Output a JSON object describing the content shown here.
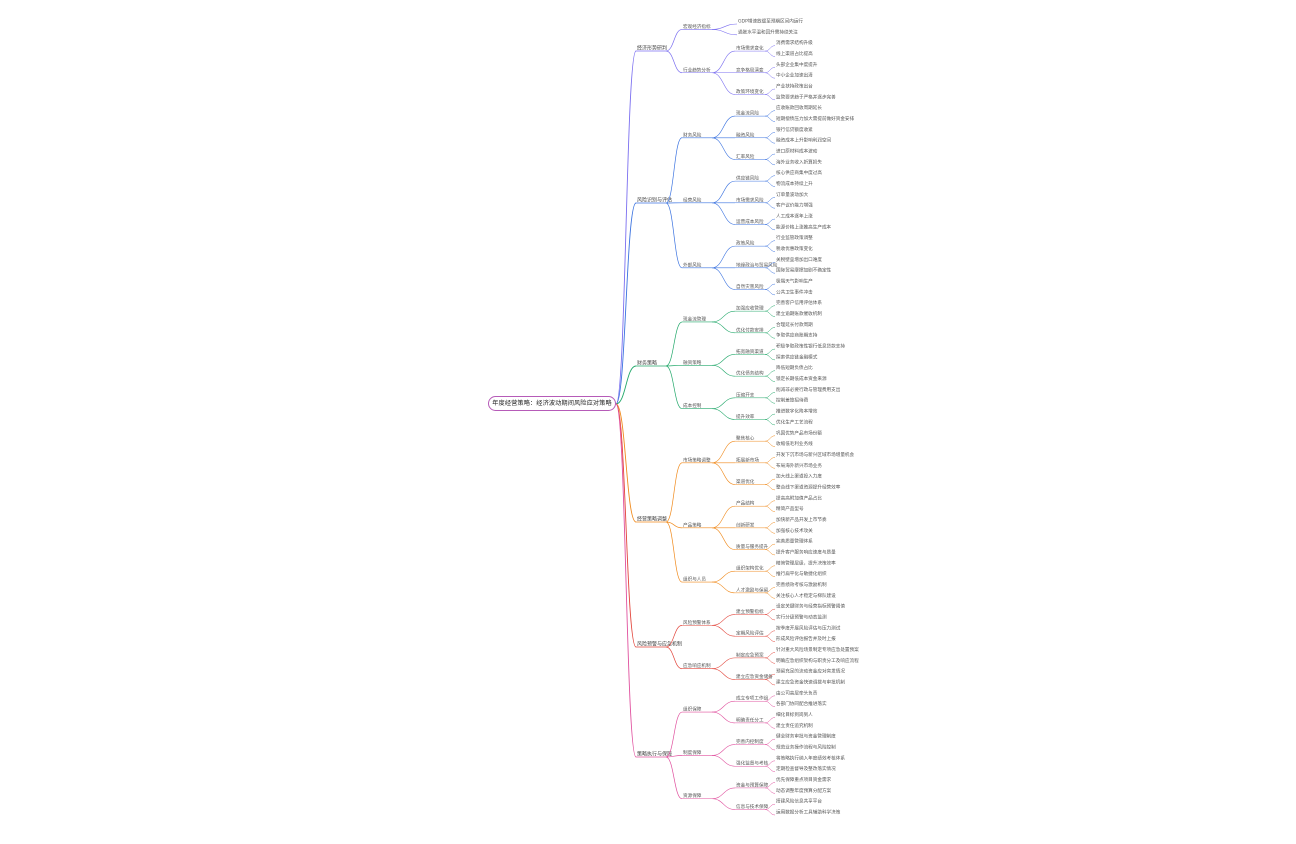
{
  "root": {
    "label": "年度经营策略：经济波动期间风险应对策略"
  },
  "branches": [
    {
      "label": "经济形势研判",
      "color": "#7b6ff0",
      "children": [
        {
          "label": "宏观经济指标",
          "children": [
            {
              "label": "GDP增速放缓至预期区间内运行"
            },
            {
              "label": "通胀水平温和回升需持续关注"
            }
          ]
        },
        {
          "label": "行业趋势分析",
          "children": [
            {
              "label": "市场需求变化",
              "children": [
                {
                  "label": "消费需求结构升级"
                },
                {
                  "label": "线上渠道占比提高"
                }
              ]
            },
            {
              "label": "竞争格局演变",
              "children": [
                {
                  "label": "头部企业集中度提升"
                },
                {
                  "label": "中小企业加速出清"
                }
              ]
            },
            {
              "label": "政策环境变化",
              "children": [
                {
                  "label": "产业扶持政策出台"
                },
                {
                  "label": "监管要求趋于严格并逐步完善"
                }
              ]
            }
          ]
        }
      ]
    },
    {
      "label": "风险识别与评估",
      "color": "#3b73e0",
      "children": [
        {
          "label": "财务风险",
          "children": [
            {
              "label": "现金流风险",
              "children": [
                {
                  "label": "应收账款回收周期延长"
                },
                {
                  "label": "短期偿债压力加大需提前做好资金安排"
                }
              ]
            },
            {
              "label": "融资风险",
              "children": [
                {
                  "label": "银行信贷额度收紧"
                },
                {
                  "label": "融资成本上升影响利润空间"
                }
              ]
            },
            {
              "label": "汇率风险",
              "children": [
                {
                  "label": "进口原材料成本波动"
                },
                {
                  "label": "海外业务收入折算损失"
                }
              ]
            }
          ]
        },
        {
          "label": "经营风险",
          "children": [
            {
              "label": "供应链风险",
              "children": [
                {
                  "label": "核心供应商集中度过高"
                },
                {
                  "label": "物流成本持续上升"
                }
              ]
            },
            {
              "label": "市场需求风险",
              "children": [
                {
                  "label": "订单量波动加大"
                },
                {
                  "label": "客户议价能力增强"
                }
              ]
            },
            {
              "label": "运营成本风险",
              "children": [
                {
                  "label": "人工成本逐年上涨"
                },
                {
                  "label": "能源价格上涨推高生产成本"
                }
              ]
            }
          ]
        },
        {
          "label": "外部风险",
          "children": [
            {
              "label": "政策风险",
              "children": [
                {
                  "label": "行业监管政策调整"
                },
                {
                  "label": "税收优惠政策变化"
                }
              ]
            },
            {
              "label": "地缘政治与贸易风险",
              "children": [
                {
                  "label": "关税壁垒增加出口难度"
                },
                {
                  "label": "国际贸易摩擦加剧不确定性"
                }
              ]
            },
            {
              "label": "自然灾害风险",
              "children": [
                {
                  "label": "极端天气影响生产"
                },
                {
                  "label": "公共卫生事件冲击"
                }
              ]
            }
          ]
        }
      ]
    },
    {
      "label": "财务策略",
      "color": "#22a86a",
      "children": [
        {
          "label": "现金流管理",
          "children": [
            {
              "label": "加强应收管理",
              "children": [
                {
                  "label": "完善客户信用评估体系"
                },
                {
                  "label": "建立逾期账款催收机制"
                }
              ]
            },
            {
              "label": "优化付款安排",
              "children": [
                {
                  "label": "合理延长付款周期"
                },
                {
                  "label": "争取供应商账期支持"
                }
              ]
            }
          ]
        },
        {
          "label": "融资策略",
          "children": [
            {
              "label": "拓宽融资渠道",
              "children": [
                {
                  "label": "积极争取政策性银行低息贷款支持"
                },
                {
                  "label": "探索供应链金融模式"
                }
              ]
            },
            {
              "label": "优化债务结构",
              "children": [
                {
                  "label": "降低短期负债占比"
                },
                {
                  "label": "锁定长期低成本资金来源"
                }
              ]
            }
          ]
        },
        {
          "label": "成本控制",
          "children": [
            {
              "label": "压缩开支",
              "children": [
                {
                  "label": "削减非必要行政与管理费用支出"
                },
                {
                  "label": "控制差旅招待费"
                }
              ]
            },
            {
              "label": "提升效率",
              "children": [
                {
                  "label": "推进数字化降本增效"
                },
                {
                  "label": "优化生产工艺流程"
                }
              ]
            }
          ]
        }
      ]
    },
    {
      "label": "经营策略调整",
      "color": "#f08a1c",
      "children": [
        {
          "label": "市场策略调整",
          "children": [
            {
              "label": "聚焦核心",
              "children": [
                {
                  "label": "巩固优势产品市场份额"
                },
                {
                  "label": "收缩低毛利业务线"
                }
              ]
            },
            {
              "label": "拓展新市场",
              "children": [
                {
                  "label": "开发下沉市场与新兴区域市场增量机会"
                },
                {
                  "label": "布局海外新兴市场业务"
                }
              ]
            },
            {
              "label": "渠道优化",
              "children": [
                {
                  "label": "加大线上渠道投入力度"
                },
                {
                  "label": "整合线下渠道资源提升经营效率"
                }
              ]
            }
          ]
        },
        {
          "label": "产品策略",
          "children": [
            {
              "label": "产品结构",
              "children": [
                {
                  "label": "提高高附加值产品占比"
                },
                {
                  "label": "精简产品型号"
                }
              ]
            },
            {
              "label": "创新研发",
              "children": [
                {
                  "label": "加快新产品开发上市节奏"
                },
                {
                  "label": "加强核心技术攻关"
                }
              ]
            },
            {
              "label": "质量与服务提升",
              "children": [
                {
                  "label": "完善质量管理体系"
                },
                {
                  "label": "提升客户服务响应速度与质量"
                }
              ]
            }
          ]
        },
        {
          "label": "组织与人员",
          "children": [
            {
              "label": "组织架构优化",
              "children": [
                {
                  "label": "精简管理层级，提升决策效率"
                },
                {
                  "label": "推行扁平化与敏捷化组织"
                }
              ]
            },
            {
              "label": "人才激励与保留",
              "children": [
                {
                  "label": "完善绩效考核与激励机制"
                },
                {
                  "label": "关注核心人才稳定与梯队建设"
                }
              ]
            }
          ]
        }
      ]
    },
    {
      "label": "风险预警与应急机制",
      "color": "#e2443a",
      "children": [
        {
          "label": "风险预警体系",
          "children": [
            {
              "label": "建立预警指标",
              "children": [
                {
                  "label": "设定关键财务与经营指标预警阈值"
                },
                {
                  "label": "实行分级预警与动态监测"
                }
              ]
            },
            {
              "label": "定期风险评估",
              "children": [
                {
                  "label": "按季度开展风险评估与压力测试"
                },
                {
                  "label": "形成风险评估报告并及时上报"
                }
              ]
            }
          ]
        },
        {
          "label": "应急响应机制",
          "children": [
            {
              "label": "制定应急预案",
              "children": [
                {
                  "label": "针对重大风险场景制定专项应急处置预案"
                },
                {
                  "label": "明确应急组织架构与职责分工及响应流程"
                }
              ]
            },
            {
              "label": "建立应急资金储备",
              "children": [
                {
                  "label": "预留充足的流动资金应对突发情况"
                },
                {
                  "label": "建立应急资金快速调拨与审批机制"
                }
              ]
            }
          ]
        }
      ]
    },
    {
      "label": "策略执行与保障",
      "color": "#e0509e",
      "children": [
        {
          "label": "组织保障",
          "children": [
            {
              "label": "成立专项工作组",
              "children": [
                {
                  "label": "由公司高层牵头负责"
                },
                {
                  "label": "各部门协同配合推进落实"
                }
              ]
            },
            {
              "label": "明确责任分工",
              "children": [
                {
                  "label": "细化目标到岗到人"
                },
                {
                  "label": "建立责任追究机制"
                }
              ]
            }
          ]
        },
        {
          "label": "制度保障",
          "children": [
            {
              "label": "完善内控制度",
              "children": [
                {
                  "label": "健全财务审批与资金管理制度"
                },
                {
                  "label": "规范业务操作流程与风险控制"
                }
              ]
            },
            {
              "label": "强化监督与考核",
              "children": [
                {
                  "label": "将策略执行纳入年度绩效考核体系"
                },
                {
                  "label": "定期检查督导及整改落实情况"
                }
              ]
            }
          ]
        },
        {
          "label": "资源保障",
          "children": [
            {
              "label": "资金与预算保障",
              "children": [
                {
                  "label": "优先保障重点项目资金需求"
                },
                {
                  "label": "动态调整年度预算分配方案"
                }
              ]
            },
            {
              "label": "信息与技术保障",
              "children": [
                {
                  "label": "搭建风险信息共享平台"
                },
                {
                  "label": "运用数据分析工具辅助科学决策"
                }
              ]
            }
          ]
        }
      ]
    }
  ]
}
